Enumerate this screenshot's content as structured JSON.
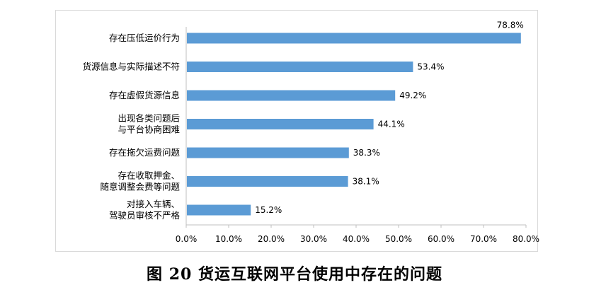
{
  "caption": "图 20  货运互联网平台使用中存在的问题",
  "colors": {
    "bar": "#5b9bd5",
    "axis": "#bfbfbf",
    "text": "#000000"
  },
  "chart_data": {
    "type": "bar",
    "orientation": "horizontal",
    "title": "",
    "xlabel": "",
    "ylabel": "",
    "xlim": [
      0,
      80
    ],
    "grid": false,
    "legend": "none",
    "categories": [
      [
        "存在压低运价行为"
      ],
      [
        "货源信息与实际描述不符"
      ],
      [
        "存在虚假货源信息"
      ],
      [
        "出现各类问题后",
        "与平台协商困难"
      ],
      [
        "存在拖欠运费问题"
      ],
      [
        "存在收取押金、",
        "随意调整会费等问题"
      ],
      [
        "对接入车辆、",
        "驾驶员审核不严格"
      ]
    ],
    "values": [
      78.8,
      53.4,
      49.2,
      44.1,
      38.3,
      38.1,
      15.2
    ],
    "value_labels": [
      "78.8%",
      "53.4%",
      "49.2%",
      "44.1%",
      "38.3%",
      "38.1%",
      "15.2%"
    ],
    "ticks": [
      0,
      10,
      20,
      30,
      40,
      50,
      60,
      70,
      80
    ],
    "tick_labels": [
      "0.0%",
      "10.0%",
      "20.0%",
      "30.0%",
      "40.0%",
      "50.0%",
      "60.0%",
      "70.0%",
      "80.0%"
    ]
  }
}
